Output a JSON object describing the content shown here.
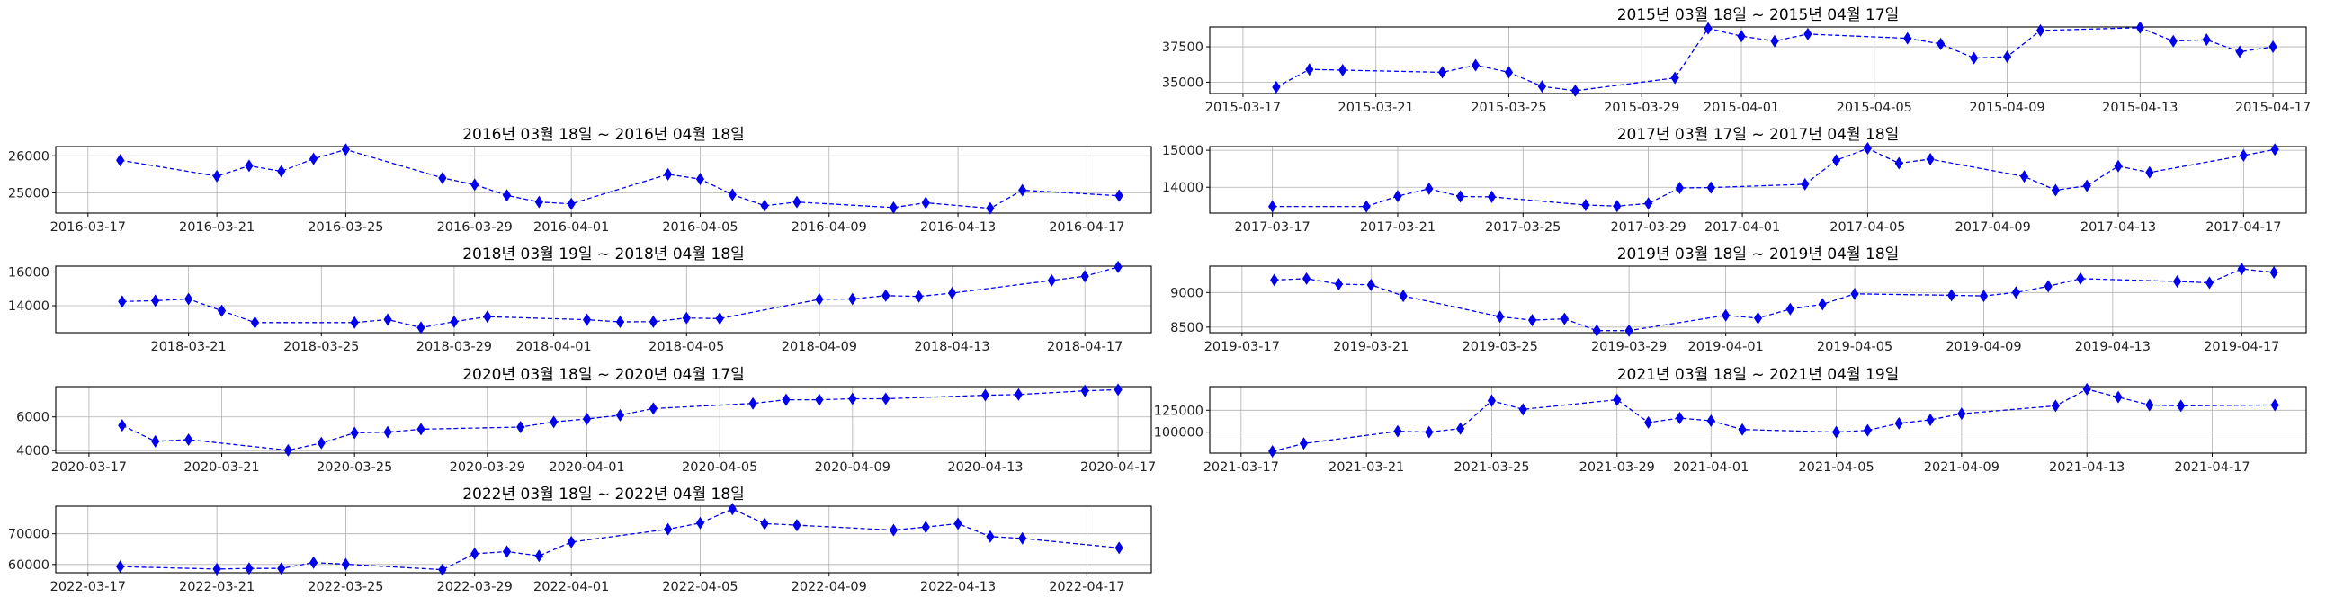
{
  "chart_data": [
    {
      "type": "line",
      "title": "2015년 03월 18일 ~ 2015년 04월 17일",
      "xlim": [
        "2015-03-16",
        "2015-04-18"
      ],
      "ylim": [
        34200,
        38900
      ],
      "xticks": [
        "2015-03-17",
        "2015-03-21",
        "2015-03-25",
        "2015-03-29",
        "2015-04-01",
        "2015-04-05",
        "2015-04-09",
        "2015-04-13",
        "2015-04-17"
      ],
      "yticks": [
        35000,
        37500
      ],
      "ytick_labels": [
        "35000",
        "37500"
      ],
      "grid": true,
      "marker": "diamond",
      "line_style": "dashed",
      "color": "#0000ee",
      "series": [
        {
          "x": [
            "2015-03-18",
            "2015-03-19",
            "2015-03-20",
            "2015-03-23",
            "2015-03-24",
            "2015-03-25",
            "2015-03-26",
            "2015-03-27",
            "2015-03-30",
            "2015-03-31",
            "2015-04-01",
            "2015-04-02",
            "2015-04-03",
            "2015-04-06",
            "2015-04-07",
            "2015-04-08",
            "2015-04-09",
            "2015-04-10",
            "2015-04-13",
            "2015-04-14",
            "2015-04-15",
            "2015-04-16",
            "2015-04-17"
          ],
          "y": [
            34650,
            35900,
            35850,
            35700,
            36200,
            35700,
            34700,
            34400,
            35300,
            38800,
            38250,
            37900,
            38400,
            38100,
            37700,
            36700,
            36800,
            38650,
            38850,
            37900,
            38000,
            37150,
            37500
          ]
        }
      ]
    },
    {
      "type": "line",
      "title": "2016년 03월 18일 ~ 2016년 04월 18일",
      "xlim": [
        "2016-03-16",
        "2016-04-19"
      ],
      "ylim": [
        24450,
        26250
      ],
      "xticks": [
        "2016-03-17",
        "2016-03-21",
        "2016-03-25",
        "2016-03-29",
        "2016-04-01",
        "2016-04-05",
        "2016-04-09",
        "2016-04-13",
        "2016-04-17"
      ],
      "yticks": [
        25000,
        26000
      ],
      "ytick_labels": [
        "25000",
        "26000"
      ],
      "grid": true,
      "marker": "diamond",
      "line_style": "dashed",
      "color": "#0000ee",
      "series": [
        {
          "x": [
            "2016-03-18",
            "2016-03-21",
            "2016-03-22",
            "2016-03-23",
            "2016-03-24",
            "2016-03-25",
            "2016-03-28",
            "2016-03-29",
            "2016-03-30",
            "2016-03-31",
            "2016-04-01",
            "2016-04-04",
            "2016-04-05",
            "2016-04-06",
            "2016-04-07",
            "2016-04-08",
            "2016-04-11",
            "2016-04-12",
            "2016-04-14",
            "2016-04-15",
            "2016-04-18"
          ],
          "y": [
            25880,
            25450,
            25730,
            25580,
            25920,
            26170,
            25400,
            25220,
            24930,
            24750,
            24700,
            25500,
            25370,
            24950,
            24650,
            24750,
            24600,
            24730,
            24580,
            25070,
            24920
          ]
        }
      ]
    },
    {
      "type": "line",
      "title": "2017년 03월 17일 ~ 2017년 04월 18일",
      "xlim": [
        "2017-03-15",
        "2017-04-19"
      ],
      "ylim": [
        13300,
        15100
      ],
      "xticks": [
        "2017-03-17",
        "2017-03-21",
        "2017-03-25",
        "2017-03-29",
        "2017-04-01",
        "2017-04-05",
        "2017-04-09",
        "2017-04-13",
        "2017-04-17"
      ],
      "yticks": [
        14000,
        15000
      ],
      "ytick_labels": [
        "14000",
        "15000"
      ],
      "grid": true,
      "marker": "diamond",
      "line_style": "dashed",
      "color": "#0000ee",
      "series": [
        {
          "x": [
            "2017-03-17",
            "2017-03-20",
            "2017-03-21",
            "2017-03-22",
            "2017-03-23",
            "2017-03-24",
            "2017-03-27",
            "2017-03-28",
            "2017-03-29",
            "2017-03-30",
            "2017-03-31",
            "2017-04-03",
            "2017-04-04",
            "2017-04-05",
            "2017-04-06",
            "2017-04-07",
            "2017-04-10",
            "2017-04-11",
            "2017-04-12",
            "2017-04-13",
            "2017-04-14",
            "2017-04-17",
            "2017-04-18"
          ],
          "y": [
            13480,
            13480,
            13760,
            13960,
            13750,
            13740,
            13520,
            13490,
            13560,
            13980,
            13990,
            14080,
            14730,
            15050,
            14650,
            14760,
            14290,
            13920,
            14040,
            14570,
            14400,
            14860,
            15020
          ]
        }
      ]
    },
    {
      "type": "line",
      "title": "2018년 03월 19일 ~ 2018년 04월 18일",
      "xlim": [
        "2018-03-17",
        "2018-04-19"
      ],
      "ylim": [
        12400,
        16350
      ],
      "xticks": [
        "2018-03-21",
        "2018-03-25",
        "2018-03-29",
        "2018-04-01",
        "2018-04-05",
        "2018-04-09",
        "2018-04-13",
        "2018-04-17"
      ],
      "yticks": [
        14000,
        16000
      ],
      "ytick_labels": [
        "14000",
        "16000"
      ],
      "grid": true,
      "marker": "diamond",
      "line_style": "dashed",
      "color": "#0000ee",
      "series": [
        {
          "x": [
            "2018-03-19",
            "2018-03-20",
            "2018-03-21",
            "2018-03-22",
            "2018-03-23",
            "2018-03-26",
            "2018-03-27",
            "2018-03-28",
            "2018-03-29",
            "2018-03-30",
            "2018-04-02",
            "2018-04-03",
            "2018-04-04",
            "2018-04-05",
            "2018-04-06",
            "2018-04-09",
            "2018-04-10",
            "2018-04-11",
            "2018-04-12",
            "2018-04-13",
            "2018-04-16",
            "2018-04-17",
            "2018-04-18"
          ],
          "y": [
            14250,
            14300,
            14400,
            13700,
            13000,
            13000,
            13180,
            12700,
            13050,
            13350,
            13170,
            13040,
            13050,
            13270,
            13240,
            14380,
            14400,
            14600,
            14550,
            14750,
            15500,
            15750,
            16300
          ]
        }
      ]
    },
    {
      "type": "line",
      "title": "2019년 03월 18일 ~ 2019년 04월 18일",
      "xlim": [
        "2019-03-16",
        "2019-04-19"
      ],
      "ylim": [
        8420,
        9380
      ],
      "xticks": [
        "2019-03-17",
        "2019-03-21",
        "2019-03-25",
        "2019-03-29",
        "2019-04-01",
        "2019-04-05",
        "2019-04-09",
        "2019-04-13",
        "2019-04-17"
      ],
      "yticks": [
        8500,
        9000
      ],
      "ytick_labels": [
        "8500",
        "9000"
      ],
      "grid": true,
      "marker": "diamond",
      "line_style": "dashed",
      "color": "#0000ee",
      "series": [
        {
          "x": [
            "2019-03-18",
            "2019-03-19",
            "2019-03-20",
            "2019-03-21",
            "2019-03-22",
            "2019-03-25",
            "2019-03-26",
            "2019-03-27",
            "2019-03-28",
            "2019-03-29",
            "2019-04-01",
            "2019-04-02",
            "2019-04-03",
            "2019-04-04",
            "2019-04-05",
            "2019-04-08",
            "2019-04-09",
            "2019-04-10",
            "2019-04-11",
            "2019-04-12",
            "2019-04-15",
            "2019-04-16",
            "2019-04-17",
            "2019-04-18"
          ],
          "y": [
            9180,
            9200,
            9120,
            9110,
            8950,
            8650,
            8600,
            8620,
            8450,
            8450,
            8670,
            8630,
            8760,
            8830,
            8980,
            8960,
            8950,
            9000,
            9090,
            9200,
            9160,
            9140,
            9340,
            9290
          ]
        }
      ]
    },
    {
      "type": "line",
      "title": "2020년 03월 18일 ~ 2020년 04월 17일",
      "xlim": [
        "2020-03-16",
        "2020-04-18"
      ],
      "ylim": [
        3850,
        7800
      ],
      "xticks": [
        "2020-03-17",
        "2020-03-21",
        "2020-03-25",
        "2020-03-29",
        "2020-04-01",
        "2020-04-05",
        "2020-04-09",
        "2020-04-13",
        "2020-04-17"
      ],
      "yticks": [
        4000,
        6000
      ],
      "ytick_labels": [
        "4000",
        "6000"
      ],
      "grid": true,
      "marker": "diamond",
      "line_style": "dashed",
      "color": "#0000ee",
      "series": [
        {
          "x": [
            "2020-03-18",
            "2020-03-19",
            "2020-03-20",
            "2020-03-23",
            "2020-03-24",
            "2020-03-25",
            "2020-03-26",
            "2020-03-27",
            "2020-03-30",
            "2020-03-31",
            "2020-04-01",
            "2020-04-02",
            "2020-04-03",
            "2020-04-06",
            "2020-04-07",
            "2020-04-08",
            "2020-04-09",
            "2020-04-10",
            "2020-04-13",
            "2020-04-14",
            "2020-04-16",
            "2020-04-17"
          ],
          "y": [
            5500,
            4550,
            4650,
            4020,
            4450,
            5050,
            5100,
            5270,
            5400,
            5700,
            5880,
            6100,
            6500,
            6800,
            7020,
            7020,
            7080,
            7080,
            7290,
            7330,
            7550,
            7620
          ]
        }
      ]
    },
    {
      "type": "line",
      "title": "2021년 03월 18일 ~ 2021년 04월 19일",
      "xlim": [
        "2021-03-16",
        "2021-04-20"
      ],
      "ylim": [
        76000,
        152000
      ],
      "xticks": [
        "2021-03-17",
        "2021-03-21",
        "2021-03-25",
        "2021-03-29",
        "2021-04-01",
        "2021-04-05",
        "2021-04-09",
        "2021-04-13",
        "2021-04-17"
      ],
      "yticks": [
        100000,
        125000
      ],
      "ytick_labels": [
        "100000",
        "125000"
      ],
      "grid": true,
      "marker": "diamond",
      "line_style": "dashed",
      "color": "#0000ee",
      "series": [
        {
          "x": [
            "2021-03-18",
            "2021-03-19",
            "2021-03-22",
            "2021-03-23",
            "2021-03-24",
            "2021-03-25",
            "2021-03-26",
            "2021-03-29",
            "2021-03-30",
            "2021-03-31",
            "2021-04-01",
            "2021-04-02",
            "2021-04-05",
            "2021-04-06",
            "2021-04-07",
            "2021-04-08",
            "2021-04-09",
            "2021-04-12",
            "2021-04-13",
            "2021-04-14",
            "2021-04-15",
            "2021-04-16",
            "2021-04-19"
          ],
          "y": [
            78000,
            87000,
            101000,
            100000,
            104000,
            136000,
            126000,
            137000,
            111000,
            116000,
            113000,
            103000,
            100000,
            102000,
            110000,
            114000,
            121000,
            130000,
            149000,
            140000,
            131000,
            130000,
            131000
          ]
        }
      ]
    },
    {
      "type": "line",
      "title": "2022년 03월 18일 ~ 2022년 04월 18일",
      "xlim": [
        "2022-03-16",
        "2022-04-19"
      ],
      "ylim": [
        57300,
        79000
      ],
      "xticks": [
        "2022-03-17",
        "2022-03-21",
        "2022-03-25",
        "2022-03-29",
        "2022-04-01",
        "2022-04-05",
        "2022-04-09",
        "2022-04-13",
        "2022-04-17"
      ],
      "yticks": [
        60000,
        70000
      ],
      "ytick_labels": [
        "60000",
        "70000"
      ],
      "grid": true,
      "marker": "diamond",
      "line_style": "dashed",
      "color": "#0000ee",
      "series": [
        {
          "x": [
            "2022-03-18",
            "2022-03-21",
            "2022-03-22",
            "2022-03-23",
            "2022-03-24",
            "2022-03-25",
            "2022-03-28",
            "2022-03-29",
            "2022-03-30",
            "2022-03-31",
            "2022-04-01",
            "2022-04-04",
            "2022-04-05",
            "2022-04-06",
            "2022-04-07",
            "2022-04-08",
            "2022-04-11",
            "2022-04-12",
            "2022-04-13",
            "2022-04-14",
            "2022-04-15",
            "2022-04-18"
          ],
          "y": [
            59300,
            58500,
            58700,
            58700,
            60600,
            60100,
            58300,
            63500,
            64200,
            62800,
            67300,
            71500,
            73500,
            78100,
            73300,
            72800,
            71200,
            72200,
            73300,
            69100,
            68500,
            65400
          ]
        }
      ]
    }
  ]
}
